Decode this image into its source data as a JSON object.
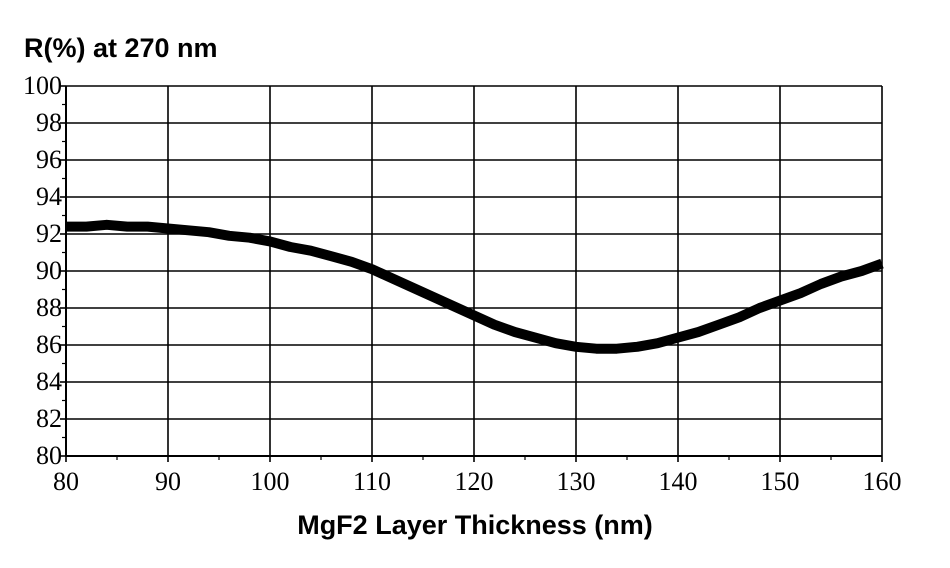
{
  "chart_data": {
    "type": "line",
    "title": "R(%) at 270 nm",
    "xlabel": "MgF2 Layer Thickness (nm)",
    "ylabel": "",
    "xlim": [
      80,
      160
    ],
    "ylim": [
      80,
      100
    ],
    "xticks": [
      "80",
      "90",
      "100",
      "110",
      "120",
      "130",
      "140",
      "150",
      "160"
    ],
    "yticks": [
      "80",
      "82",
      "84",
      "86",
      "88",
      "90",
      "92",
      "94",
      "96",
      "98",
      "100"
    ],
    "grid": true,
    "series": [
      {
        "x": [
          80,
          82,
          84,
          86,
          88,
          90,
          92,
          94,
          96,
          98,
          100,
          102,
          104,
          106,
          108,
          110,
          112,
          114,
          116,
          118,
          120,
          122,
          124,
          126,
          128,
          130,
          132,
          134,
          136,
          138,
          140,
          142,
          144,
          146,
          148,
          150,
          152,
          154,
          156,
          158,
          160
        ],
        "y": [
          92.4,
          92.4,
          92.5,
          92.4,
          92.4,
          92.3,
          92.2,
          92.1,
          91.9,
          91.8,
          91.6,
          91.3,
          91.1,
          90.8,
          90.5,
          90.1,
          89.6,
          89.1,
          88.6,
          88.1,
          87.6,
          87.1,
          86.7,
          86.4,
          86.1,
          85.9,
          85.8,
          85.8,
          85.9,
          86.1,
          86.4,
          86.7,
          87.1,
          87.5,
          88.0,
          88.4,
          88.8,
          89.3,
          89.7,
          90.0,
          90.4
        ],
        "color": "#000000"
      }
    ]
  }
}
